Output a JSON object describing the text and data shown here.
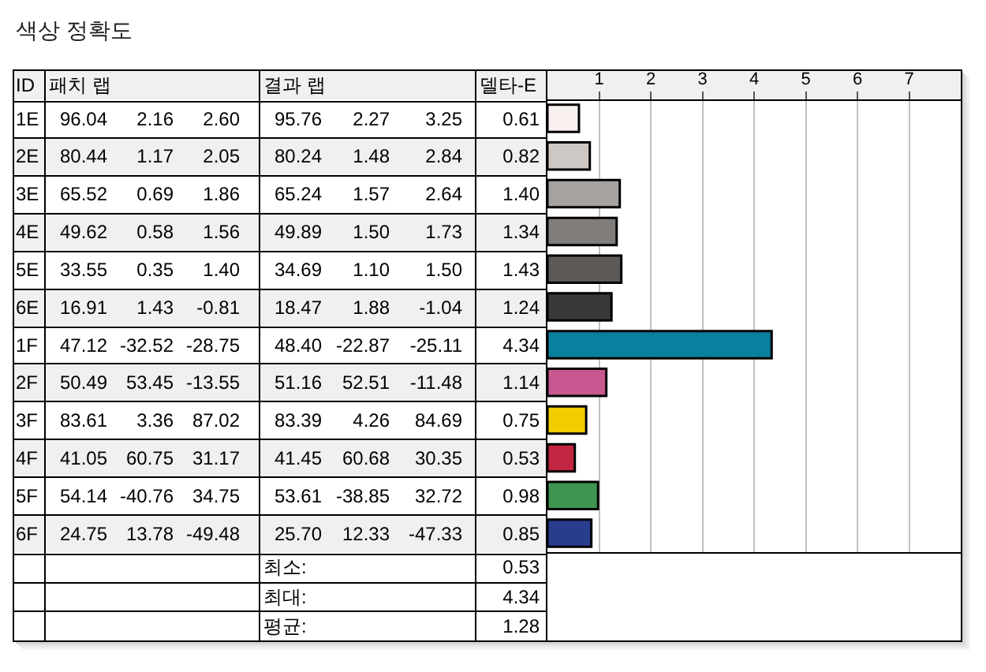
{
  "chart_data": {
    "type": "bar",
    "orientation": "horizontal",
    "title": "색상 정확도",
    "categories": [
      "1E",
      "2E",
      "3E",
      "4E",
      "5E",
      "6E",
      "1F",
      "2F",
      "3F",
      "4F",
      "5F",
      "6F"
    ],
    "series": [
      {
        "axis": "x2",
        "values": [
          0.61,
          0.82,
          1.4,
          1.34,
          1.43,
          1.24,
          4.34,
          1.14,
          0.75,
          0.53,
          0.98,
          0.85
        ],
        "value_labels": [
          "0.61",
          "0.82",
          "1.40",
          "1.34",
          "1.43",
          "1.24",
          "4.34",
          "1.14",
          "0.75",
          "0.53",
          "0.98",
          "0.85"
        ],
        "colors": [
          "#f8f0ee",
          "#cdc8c4",
          "#a7a29f",
          "#817d7a",
          "#5d5957",
          "#393737",
          "#0a7f9e",
          "#c8588f",
          "#f2cc00",
          "#c22640",
          "#3f9550",
          "#283d8b"
        ]
      }
    ],
    "x2lim": [
      0,
      8
    ],
    "x2ticks": [
      1,
      2,
      3,
      4,
      5,
      6,
      7
    ],
    "grid": "x",
    "annotations": [
      "ID",
      "패치 랩",
      "결과 랩",
      "델타-E",
      "96.04",
      "2.16",
      "2.60",
      "95.76",
      "2.27",
      "3.25",
      "80.44",
      "1.17",
      "2.05",
      "80.24",
      "1.48",
      "2.84",
      "65.52",
      "0.69",
      "1.86",
      "65.24",
      "1.57",
      "2.64",
      "49.62",
      "0.58",
      "1.56",
      "49.89",
      "1.50",
      "1.73",
      "33.55",
      "0.35",
      "1.40",
      "34.69",
      "1.10",
      "1.50",
      "16.91",
      "1.43",
      "-0.81",
      "18.47",
      "1.88",
      "-1.04",
      "47.12",
      "-32.52",
      "-28.75",
      "48.40",
      "-22.87",
      "-25.11",
      "50.49",
      "53.45",
      "-13.55",
      "51.16",
      "52.51",
      "-11.48",
      "83.61",
      "3.36",
      "87.02",
      "83.39",
      "4.26",
      "84.69",
      "41.05",
      "60.75",
      "31.17",
      "41.45",
      "60.68",
      "30.35",
      "54.14",
      "-40.76",
      "34.75",
      "53.61",
      "-38.85",
      "32.72",
      "24.75",
      "13.78",
      "-49.48",
      "25.70",
      "12.33",
      "-47.33",
      "최소:",
      "0.53",
      "최대:",
      "4.34",
      "평균:",
      "1.28"
    ]
  }
}
